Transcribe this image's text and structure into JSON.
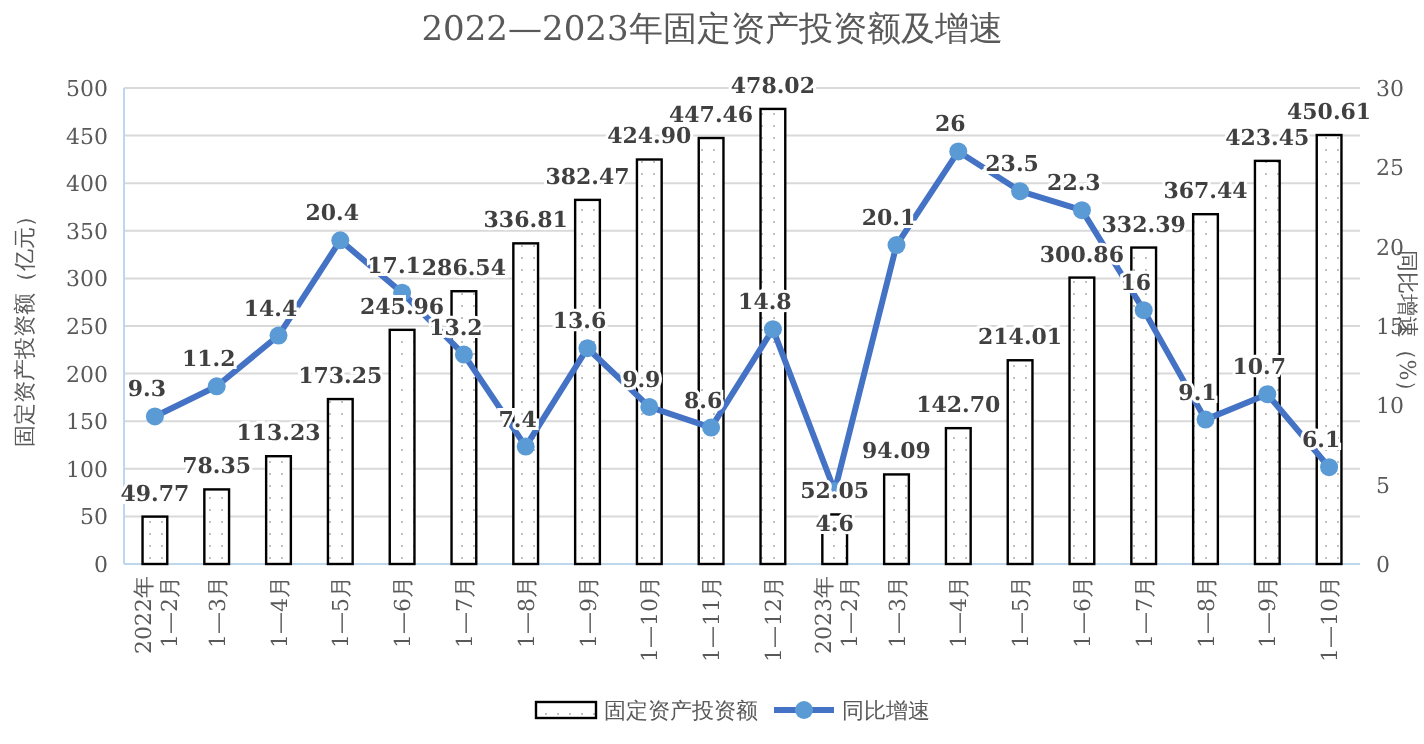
{
  "chart_data": {
    "type": "bar",
    "title": "2022—2023年固定资产投资额及增速",
    "ylabel": "固定资产投资额（亿元）",
    "y2label": "同比增速（%）",
    "categories": [
      "2022年 1—2月",
      "1—3月",
      "1—4月",
      "1—5月",
      "1—6月",
      "1—7月",
      "1—8月",
      "1—9月",
      "1—10月",
      "1—11月",
      "1—12月",
      "2023年 1—2月",
      "1—3月",
      "1—4月",
      "1—5月",
      "1—6月",
      "1—7月",
      "1—8月",
      "1—9月",
      "1—10月"
    ],
    "series": [
      {
        "name": "固定资产投资额",
        "color": "#000000",
        "values": [
          49.77,
          78.35,
          113.23,
          173.25,
          245.96,
          286.54,
          336.81,
          382.47,
          424.9,
          447.46,
          478.02,
          52.05,
          94.09,
          142.7,
          214.01,
          300.86,
          332.39,
          367.44,
          423.45,
          450.61
        ],
        "value_labels": [
          "49.77",
          "78.35",
          "113.23",
          "173.25",
          "245.96",
          "286.54",
          "336.81",
          "382.47",
          "424.90",
          "447.46",
          "478.02",
          "52.05",
          "94.09",
          "142.70",
          "214.01",
          "300.86",
          "332.39",
          "367.44",
          "423.45",
          "450.61"
        ]
      },
      {
        "name": "同比增速",
        "type": "line",
        "axis": "y2",
        "color": "#4472c4",
        "marker": "circle",
        "values": [
          9.3,
          11.2,
          14.4,
          20.4,
          17.1,
          13.2,
          7.4,
          13.6,
          9.9,
          8.6,
          14.8,
          4.6,
          20.1,
          26,
          23.5,
          22.3,
          16,
          9.1,
          10.7,
          6.1
        ],
        "data_labels": true
      }
    ],
    "ylim": [
      0,
      500
    ],
    "yticks": [
      0,
      50,
      100,
      150,
      200,
      250,
      300,
      350,
      400,
      450,
      500
    ],
    "y2lim": [
      0,
      30
    ],
    "y2ticks": [
      0,
      5,
      10,
      15,
      20,
      25,
      30
    ],
    "grid": "y",
    "legend": "bottom"
  }
}
